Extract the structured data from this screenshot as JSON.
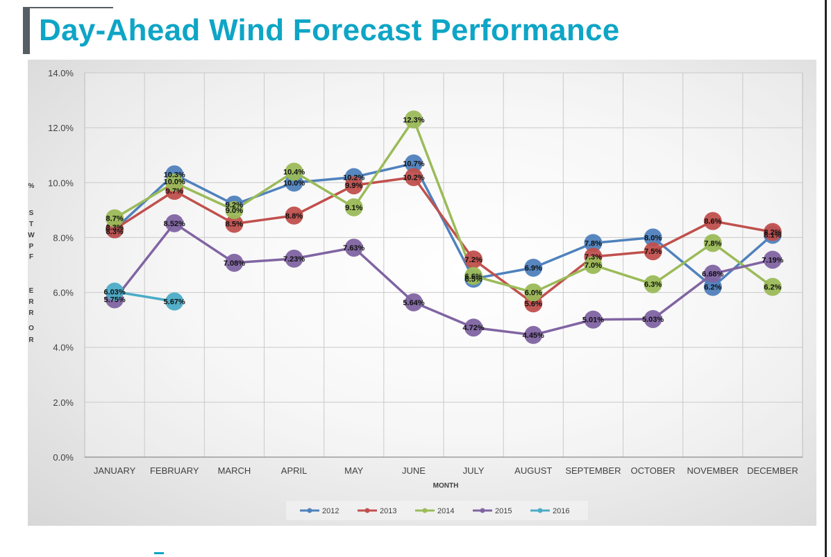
{
  "title": "Day-Ahead Wind Forecast Performance",
  "chart_data": {
    "type": "line",
    "title": "Day-Ahead Wind Forecast Performance",
    "xlabel": "MONTH",
    "ylabel": "% STWPF ERROR",
    "ylabel_letters": [
      "%",
      "S",
      "T",
      "W",
      "P",
      "F",
      "E",
      "R",
      "R",
      "O",
      "R"
    ],
    "ylim": [
      0,
      14
    ],
    "yticks": [
      0,
      2,
      4,
      6,
      8,
      10,
      12,
      14
    ],
    "ytick_labels": [
      "0.0%",
      "2.0%",
      "4.0%",
      "6.0%",
      "8.0%",
      "10.0%",
      "12.0%",
      "14.0%"
    ],
    "grid": true,
    "legend_position": "bottom-center",
    "categories": [
      "JANUARY",
      "FEBRUARY",
      "MARCH",
      "APRIL",
      "MAY",
      "JUNE",
      "JULY",
      "AUGUST",
      "SEPTEMBER",
      "OCTOBER",
      "NOVEMBER",
      "DECEMBER"
    ],
    "series": [
      {
        "name": "2012",
        "color": "#4f81bd",
        "values": [
          8.3,
          10.3,
          9.2,
          10.0,
          10.2,
          10.7,
          6.5,
          6.9,
          7.8,
          8.0,
          6.2,
          8.1
        ],
        "labels": [
          "8.3%",
          "10.3%",
          "9.2%",
          "10.0%",
          "10.2%",
          "10.7%",
          "6.5%",
          "6.9%",
          "7.8%",
          "8.0%",
          "6.2%",
          "8.1%"
        ]
      },
      {
        "name": "2013",
        "color": "#c0504d",
        "values": [
          8.3,
          9.7,
          8.5,
          8.8,
          9.9,
          10.2,
          7.2,
          5.6,
          7.3,
          7.5,
          8.6,
          8.2
        ],
        "labels": [
          "8.3%",
          "9.7%",
          "8.5%",
          "8.8%",
          "9.9%",
          "10.2%",
          "7.2%",
          "5.6%",
          "7.3%",
          "7.5%",
          "8.6%",
          "8.2%"
        ]
      },
      {
        "name": "2014",
        "color": "#9bbb59",
        "values": [
          8.7,
          10.0,
          9.0,
          10.4,
          9.1,
          12.3,
          6.6,
          6.0,
          7.0,
          6.3,
          7.8,
          6.2
        ],
        "labels": [
          "8.7%",
          "10.0%",
          "9.0%",
          "10.4%",
          "9.1%",
          "12.3%",
          "6.6%",
          "6.0%",
          "7.0%",
          "6.3%",
          "7.8%",
          "6.2%"
        ]
      },
      {
        "name": "2015",
        "color": "#8064a2",
        "values": [
          5.75,
          8.52,
          7.08,
          7.23,
          7.63,
          5.64,
          4.72,
          4.45,
          5.01,
          5.03,
          6.68,
          7.19
        ],
        "labels": [
          "5.75%",
          "8.52%",
          "7.08%",
          "7.23%",
          "7.63%",
          "5.64%",
          "4.72%",
          "4.45%",
          "5.01%",
          "5.03%",
          "6.68%",
          "7.19%"
        ]
      },
      {
        "name": "2016",
        "color": "#4bacc6",
        "values": [
          6.03,
          5.67,
          null,
          null,
          null,
          null,
          null,
          null,
          null,
          null,
          null,
          null
        ],
        "labels": [
          "6.03%",
          "5.67%",
          null,
          null,
          null,
          null,
          null,
          null,
          null,
          null,
          null,
          null
        ]
      }
    ]
  }
}
